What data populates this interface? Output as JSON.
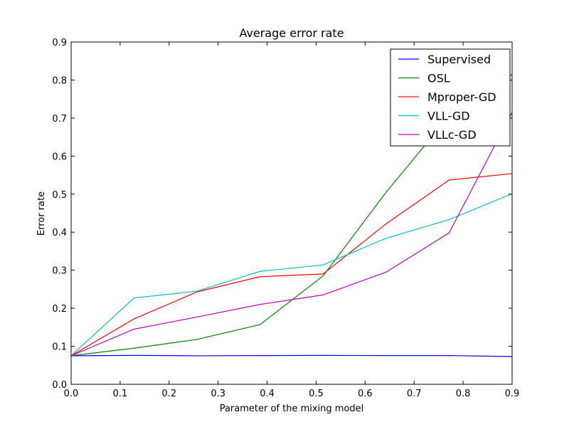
{
  "chart_data": {
    "type": "line",
    "title": "Average error rate",
    "xlabel": "Parameter of the mixing model",
    "ylabel": "Error rate",
    "xlim": [
      0.0,
      0.9
    ],
    "ylim": [
      0.0,
      0.9
    ],
    "xticks": [
      0.0,
      0.1,
      0.2,
      0.3,
      0.4,
      0.5,
      0.6,
      0.7,
      0.8,
      0.9
    ],
    "yticks": [
      0.0,
      0.1,
      0.2,
      0.3,
      0.4,
      0.5,
      0.6,
      0.7,
      0.8,
      0.9
    ],
    "xtick_labels": [
      "0.0",
      "0.1",
      "0.2",
      "0.3",
      "0.4",
      "0.5",
      "0.6",
      "0.7",
      "0.8",
      "0.9"
    ],
    "ytick_labels": [
      "0.0",
      "0.1",
      "0.2",
      "0.3",
      "0.4",
      "0.5",
      "0.6",
      "0.7",
      "0.8",
      "0.9"
    ],
    "grid": false,
    "legend_position": "top-right",
    "x": [
      0.0,
      0.1286,
      0.2571,
      0.3857,
      0.5143,
      0.6429,
      0.7714,
      0.9
    ],
    "series": [
      {
        "name": "Supervised",
        "color": "#0000ff",
        "values": [
          0.075,
          0.076,
          0.075,
          0.0755,
          0.076,
          0.0755,
          0.0755,
          0.073
        ]
      },
      {
        "name": "OSL",
        "color": "#008000",
        "values": [
          0.075,
          0.095,
          0.118,
          0.157,
          0.285,
          0.505,
          0.705,
          0.815
        ]
      },
      {
        "name": "Mproper-GD",
        "color": "#ff0000",
        "values": [
          0.075,
          0.172,
          0.243,
          0.283,
          0.29,
          0.422,
          0.537,
          0.554
        ]
      },
      {
        "name": "VLL-GD",
        "color": "#00bfbf",
        "values": [
          0.075,
          0.227,
          0.245,
          0.297,
          0.314,
          0.384,
          0.433,
          0.501
        ]
      },
      {
        "name": "VLLc-GD",
        "color": "#bf00bf",
        "values": [
          0.075,
          0.145,
          0.177,
          0.21,
          0.235,
          0.295,
          0.398,
          0.715
        ]
      }
    ]
  }
}
